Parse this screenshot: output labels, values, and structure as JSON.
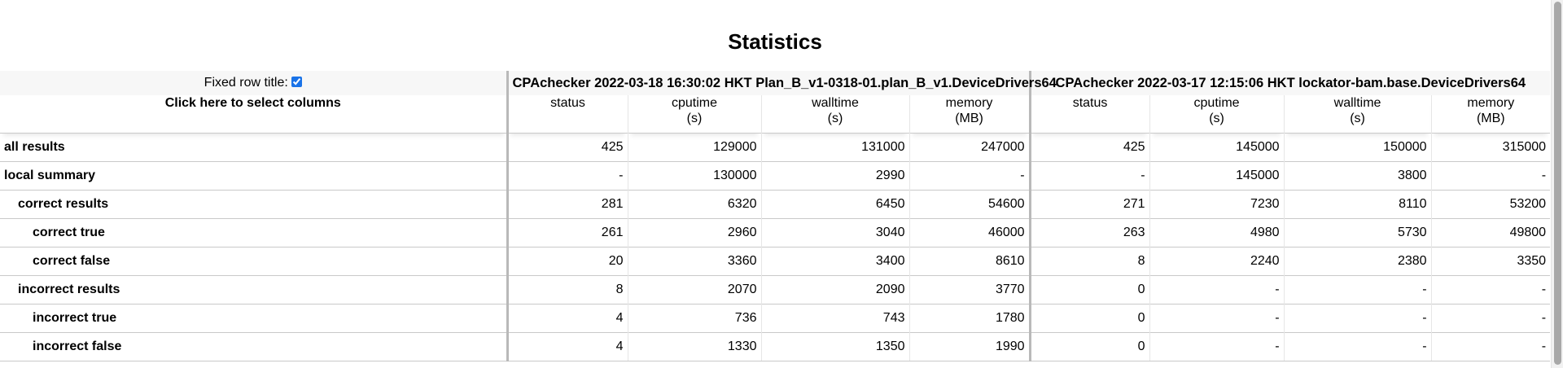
{
  "page": {
    "title": "Statistics"
  },
  "header": {
    "fixed_row_title_label": "Fixed row title:",
    "select_columns_label": "Click here to select columns",
    "runs": [
      {
        "title": "CPAchecker 2022-03-18 16:30:02 HKT Plan_B_v1-0318-01.plan_B_v1.DeviceDrivers64",
        "columns": [
          {
            "name": "status",
            "unit": ""
          },
          {
            "name": "cputime",
            "unit": "(s)"
          },
          {
            "name": "walltime",
            "unit": "(s)"
          },
          {
            "name": "memory",
            "unit": "(MB)"
          }
        ]
      },
      {
        "title": "CPAchecker 2022-03-17 12:15:06 HKT lockator-bam.base.DeviceDrivers64",
        "columns": [
          {
            "name": "status",
            "unit": ""
          },
          {
            "name": "cputime",
            "unit": "(s)"
          },
          {
            "name": "walltime",
            "unit": "(s)"
          },
          {
            "name": "memory",
            "unit": "(MB)"
          }
        ]
      }
    ]
  },
  "rows": [
    {
      "label": "all results",
      "values": [
        "425",
        "129000",
        "131000",
        "247000",
        "425",
        "145000",
        "150000",
        "315000"
      ]
    },
    {
      "label": "local summary",
      "values": [
        "-",
        "130000",
        "2990",
        "-",
        "-",
        "145000",
        "3800",
        "-"
      ]
    },
    {
      "label": "correct results",
      "values": [
        "281",
        "6320",
        "6450",
        "54600",
        "271",
        "7230",
        "8110",
        "53200"
      ]
    },
    {
      "label": "correct true",
      "values": [
        "261",
        "2960",
        "3040",
        "46000",
        "263",
        "4980",
        "5730",
        "49800"
      ]
    },
    {
      "label": "correct false",
      "values": [
        "20",
        "3360",
        "3400",
        "8610",
        "8",
        "2240",
        "2380",
        "3350"
      ]
    },
    {
      "label": "incorrect results",
      "values": [
        "8",
        "2070",
        "2090",
        "3770",
        "0",
        "-",
        "-",
        "-"
      ]
    },
    {
      "label": "incorrect true",
      "values": [
        "4",
        "736",
        "743",
        "1780",
        "0",
        "-",
        "-",
        "-"
      ]
    },
    {
      "label": "incorrect false",
      "values": [
        "4",
        "1330",
        "1350",
        "1990",
        "0",
        "-",
        "-",
        "-"
      ]
    }
  ]
}
